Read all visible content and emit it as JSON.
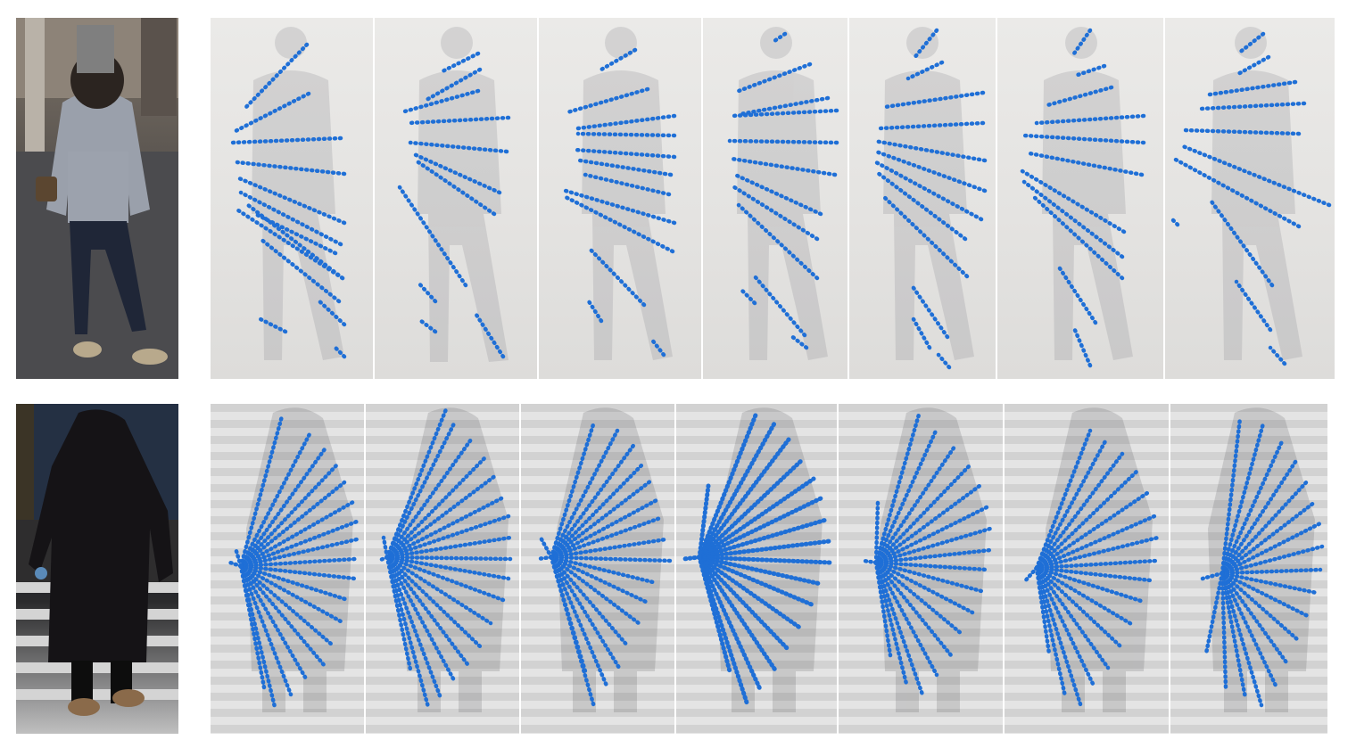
{
  "figure": {
    "rows": [
      {
        "id": "row-1",
        "reference": "woman-grey-hoodie-masked-face",
        "frames": 7,
        "fan_style": "horizontal-sweep",
        "accent": "#1f6fd6"
      },
      {
        "id": "row-2",
        "reference": "woman-black-coat-crosswalk",
        "frames": 7,
        "fan_style": "radial-burst",
        "accent": "#1f6fd6"
      }
    ]
  }
}
